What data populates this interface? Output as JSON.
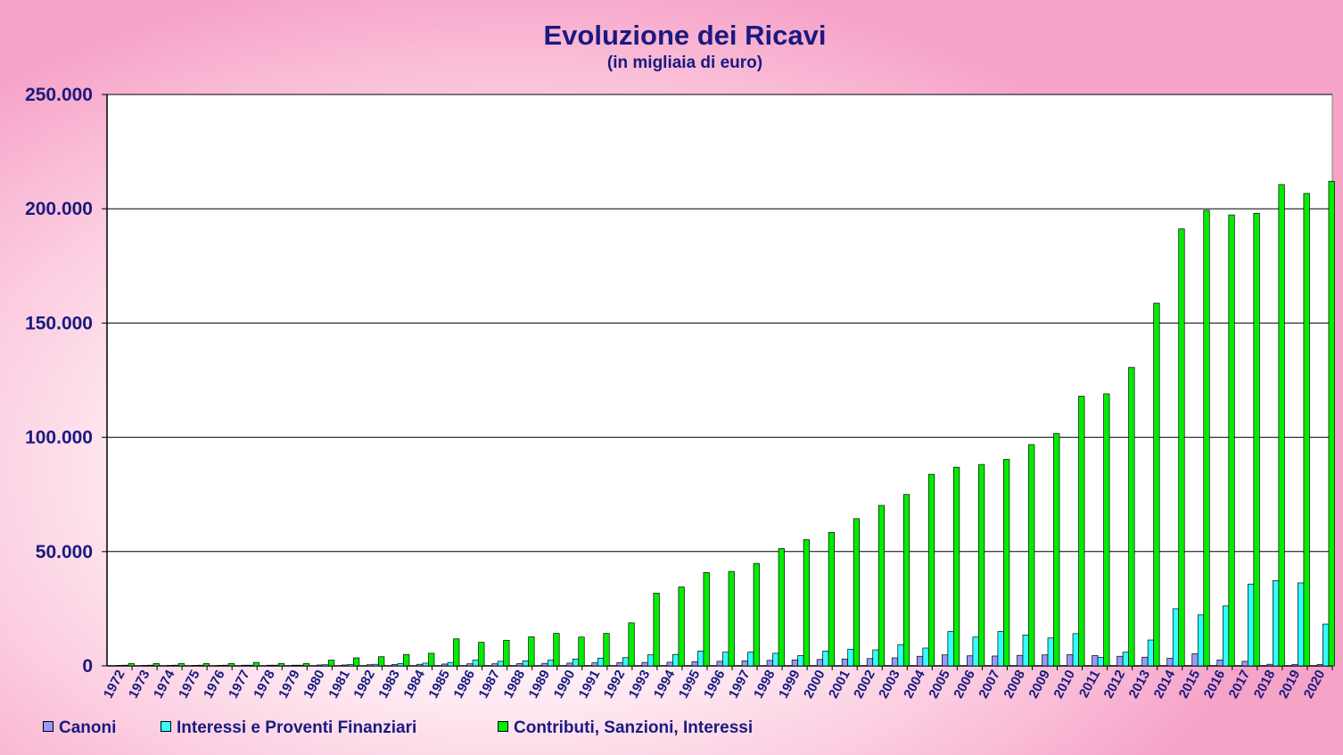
{
  "chart_data": {
    "type": "bar",
    "title": "Evoluzione dei Ricavi",
    "subtitle": "(in migliaia di euro)",
    "xlabel": "",
    "ylabel": "",
    "ylim": [
      0,
      250000
    ],
    "yticks": [
      0,
      50000,
      100000,
      150000,
      200000,
      250000
    ],
    "ytick_labels": [
      "0",
      "50.000",
      "100.000",
      "150.000",
      "200.000",
      "250.000"
    ],
    "grid": true,
    "legend": "bottom",
    "categories": [
      "1972",
      "1973",
      "1974",
      "1975",
      "1976",
      "1977",
      "1978",
      "1979",
      "1980",
      "1981",
      "1982",
      "1983",
      "1984",
      "1985",
      "1986",
      "1987",
      "1988",
      "1989",
      "1990",
      "1991",
      "1992",
      "1993",
      "1994",
      "1995",
      "1996",
      "1997",
      "1998",
      "1999",
      "2000",
      "2001",
      "2002",
      "2003",
      "2004",
      "2005",
      "2006",
      "2007",
      "2008",
      "2009",
      "2010",
      "2011",
      "2012",
      "2013",
      "2014",
      "2015",
      "2016",
      "2017",
      "2018",
      "2019",
      "2020"
    ],
    "series": [
      {
        "name": "Canoni",
        "color": "#9999ff",
        "values": [
          200,
          200,
          200,
          200,
          200,
          300,
          300,
          300,
          400,
          400,
          500,
          600,
          700,
          800,
          900,
          900,
          1000,
          1100,
          1200,
          1300,
          1400,
          1500,
          1600,
          1800,
          2000,
          2200,
          2400,
          2600,
          2800,
          3000,
          3200,
          3500,
          4200,
          4800,
          4400,
          4300,
          4600,
          4800,
          4900,
          4500,
          4200,
          3800,
          3300,
          5300,
          2600,
          2000,
          700,
          600,
          600
        ]
      },
      {
        "name": "Interessi e Proventi Finanziari",
        "color": "#33ffff",
        "values": [
          300,
          300,
          300,
          300,
          300,
          300,
          300,
          300,
          500,
          600,
          700,
          1000,
          1200,
          1500,
          2500,
          2000,
          2200,
          2500,
          3000,
          3400,
          3600,
          4800,
          5000,
          6500,
          6000,
          6000,
          5500,
          4500,
          6500,
          7300,
          7000,
          9300,
          7800,
          15000,
          12600,
          15000,
          13500,
          12200,
          14100,
          3700,
          6000,
          11300,
          25000,
          22300,
          26200,
          35800,
          37300,
          36300,
          18300
        ]
      },
      {
        "name": "Contributi, Sanzioni, Interessi",
        "color": "#00ee00",
        "values": [
          1000,
          1000,
          1000,
          1000,
          1000,
          1500,
          1000,
          1000,
          2500,
          3500,
          4000,
          5000,
          5500,
          11800,
          10300,
          11200,
          12700,
          14200,
          12600,
          14200,
          18800,
          31800,
          34500,
          40800,
          41300,
          44800,
          51300,
          55200,
          58400,
          64400,
          70200,
          75000,
          83800,
          86900,
          88100,
          90300,
          96800,
          101600,
          118000,
          119000,
          130600,
          158700,
          191200,
          199300,
          197300,
          198000,
          210600,
          206700,
          212000
        ]
      }
    ]
  }
}
